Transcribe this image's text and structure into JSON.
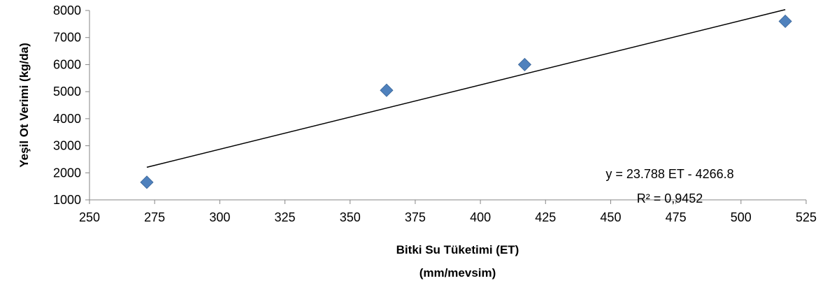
{
  "chart_data": {
    "type": "scatter",
    "title": "",
    "xlabel_lines": [
      "Bitki Su Tüketimi (ET)",
      "(mm/mevsim)"
    ],
    "ylabel": "Yeşil Ot Verimi (kg/da)",
    "xlim": [
      250,
      525
    ],
    "ylim": [
      1000,
      8000
    ],
    "xticks": [
      250,
      275,
      300,
      325,
      350,
      375,
      400,
      425,
      450,
      475,
      500,
      525
    ],
    "yticks": [
      1000,
      2000,
      3000,
      4000,
      5000,
      6000,
      7000,
      8000
    ],
    "grid": false,
    "legend": "none",
    "marker_color": "#4F81BD",
    "series": [
      {
        "values": [
          {
            "x": 272,
            "y": 1650
          },
          {
            "x": 364,
            "y": 5050
          },
          {
            "x": 417,
            "y": 6000
          },
          {
            "x": 517,
            "y": 7600
          }
        ]
      }
    ],
    "trendline": {
      "slope": 23.788,
      "intercept": -4266.8,
      "x_range": [
        272,
        517
      ],
      "equation": "y = 23.788 ET - 4266.8",
      "r_squared": "R² = 0,9452"
    }
  }
}
